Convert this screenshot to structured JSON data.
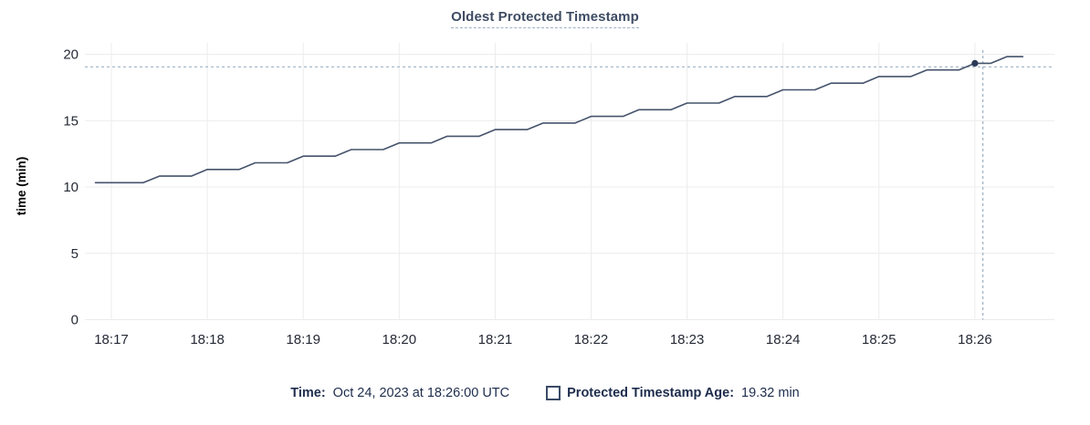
{
  "title": "Oldest Protected Timestamp",
  "ylabel": "time (min)",
  "legend": {
    "time_label": "Time:",
    "time_value": "Oct 24, 2023 at 18:26:00 UTC",
    "series_label": "Protected Timestamp Age:",
    "series_value": "19.32 min"
  },
  "colors": {
    "title": "#3e4c63",
    "title_underline": "#9fb0c5",
    "series_line": "#45536b",
    "hover_dot": "#2c3a57",
    "crosshair": "#9db0c2",
    "grid": "#ececec",
    "axis_text": "#242a35",
    "legend_text": "#1d2c4c"
  },
  "chart_data": {
    "type": "line",
    "title": "Oldest Protected Timestamp",
    "xlabel": "",
    "ylabel": "time (min)",
    "ylim": [
      0,
      20
    ],
    "yticks": [
      0,
      5,
      10,
      15,
      20
    ],
    "xticks": [
      "18:17",
      "18:18",
      "18:19",
      "18:20",
      "18:21",
      "18:22",
      "18:23",
      "18:24",
      "18:25",
      "18:26"
    ],
    "grid": true,
    "legend_position": "bottom",
    "series": [
      {
        "name": "Protected Timestamp Age",
        "unit": "min",
        "x": [
          "18:16:50",
          "18:17:00",
          "18:17:10",
          "18:17:20",
          "18:17:30",
          "18:17:40",
          "18:17:50",
          "18:18:00",
          "18:18:10",
          "18:18:20",
          "18:18:30",
          "18:18:40",
          "18:18:50",
          "18:19:00",
          "18:19:10",
          "18:19:20",
          "18:19:30",
          "18:19:40",
          "18:19:50",
          "18:20:00",
          "18:20:10",
          "18:20:20",
          "18:20:30",
          "18:20:40",
          "18:20:50",
          "18:21:00",
          "18:21:10",
          "18:21:20",
          "18:21:30",
          "18:21:40",
          "18:21:50",
          "18:22:00",
          "18:22:10",
          "18:22:20",
          "18:22:30",
          "18:22:40",
          "18:22:50",
          "18:23:00",
          "18:23:10",
          "18:23:20",
          "18:23:30",
          "18:23:40",
          "18:23:50",
          "18:24:00",
          "18:24:10",
          "18:24:20",
          "18:24:30",
          "18:24:40",
          "18:24:50",
          "18:25:00",
          "18:25:10",
          "18:25:20",
          "18:25:30",
          "18:25:40",
          "18:25:50",
          "18:26:00",
          "18:26:10",
          "18:26:20",
          "18:26:30"
        ],
        "values": [
          10.32,
          10.32,
          10.32,
          10.32,
          10.82,
          10.82,
          10.82,
          11.32,
          11.32,
          11.32,
          11.82,
          11.82,
          11.82,
          12.32,
          12.32,
          12.32,
          12.82,
          12.82,
          12.82,
          13.32,
          13.32,
          13.32,
          13.82,
          13.82,
          13.82,
          14.32,
          14.32,
          14.32,
          14.82,
          14.82,
          14.82,
          15.32,
          15.32,
          15.32,
          15.82,
          15.82,
          15.82,
          16.32,
          16.32,
          16.32,
          16.82,
          16.82,
          16.82,
          17.32,
          17.32,
          17.32,
          17.82,
          17.82,
          17.82,
          18.32,
          18.32,
          18.32,
          18.82,
          18.82,
          18.82,
          19.32,
          19.32,
          19.82,
          19.82
        ]
      }
    ],
    "hover": {
      "crosshair_x_time": "18:26:05",
      "crosshair_y_value": 19.05,
      "point": {
        "x": "18:26:00",
        "y": 19.32
      },
      "readout_time": "Oct 24, 2023 at 18:26:00 UTC",
      "readout_value": "19.32 min"
    }
  }
}
